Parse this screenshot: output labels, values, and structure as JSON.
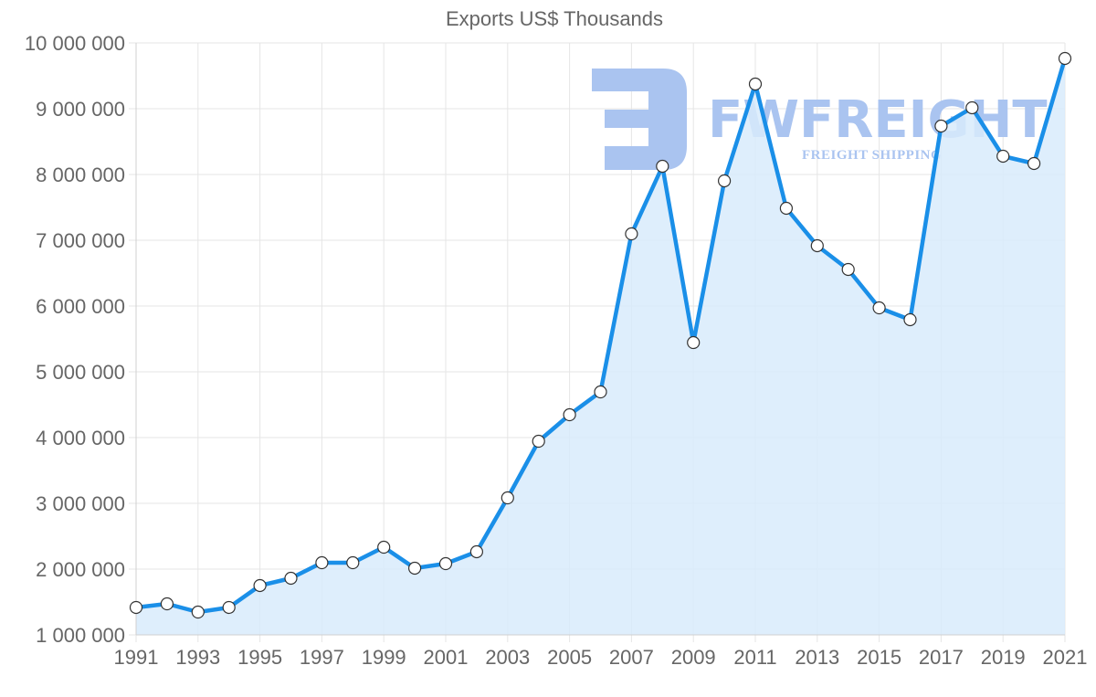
{
  "chart_data": {
    "type": "area",
    "title": "Exports US$ Thousands",
    "xlabel": "",
    "ylabel": "",
    "x": [
      1991,
      1992,
      1993,
      1994,
      1995,
      1996,
      1997,
      1998,
      1999,
      2000,
      2001,
      2002,
      2003,
      2004,
      2005,
      2006,
      2007,
      2008,
      2009,
      2010,
      2011,
      2012,
      2013,
      2014,
      2015,
      2016,
      2017,
      2018,
      2019,
      2020,
      2021
    ],
    "series": [
      {
        "name": "Exports US$ Thousands",
        "values": [
          1417000,
          1472000,
          1347000,
          1417000,
          1750000,
          1861000,
          2097000,
          2097000,
          2333000,
          2014000,
          2083000,
          2264000,
          3083000,
          3944000,
          4347000,
          4694000,
          7097000,
          8125000,
          5444000,
          7903000,
          9375000,
          7486000,
          6917000,
          6556000,
          5972000,
          5792000,
          8736000,
          9014000,
          8278000,
          8167000,
          9764000
        ],
        "line_color": "#1a8fe8",
        "fill_color": "#d8ebfc",
        "point_fill": "#ffffff",
        "point_stroke": "#333333"
      }
    ],
    "ylim": [
      1000000,
      10000000
    ],
    "yticks": [
      1000000,
      2000000,
      3000000,
      4000000,
      5000000,
      6000000,
      7000000,
      8000000,
      9000000,
      10000000
    ],
    "ytick_labels": [
      "1 000 000",
      "2 000 000",
      "3 000 000",
      "4 000 000",
      "5 000 000",
      "6 000 000",
      "7 000 000",
      "8 000 000",
      "9 000 000",
      "10 000 000"
    ],
    "xtick_labels": [
      "1991",
      "1993",
      "1995",
      "1997",
      "1999",
      "2001",
      "2003",
      "2005",
      "2007",
      "2009",
      "2011",
      "2013",
      "2015",
      "2017",
      "2019",
      "2021"
    ],
    "grid": true,
    "legend": "none"
  },
  "watermark": {
    "brand": "FWFREIGHT",
    "tagline": "FREIGHT SHIPPING",
    "color": "#aac4f0"
  }
}
